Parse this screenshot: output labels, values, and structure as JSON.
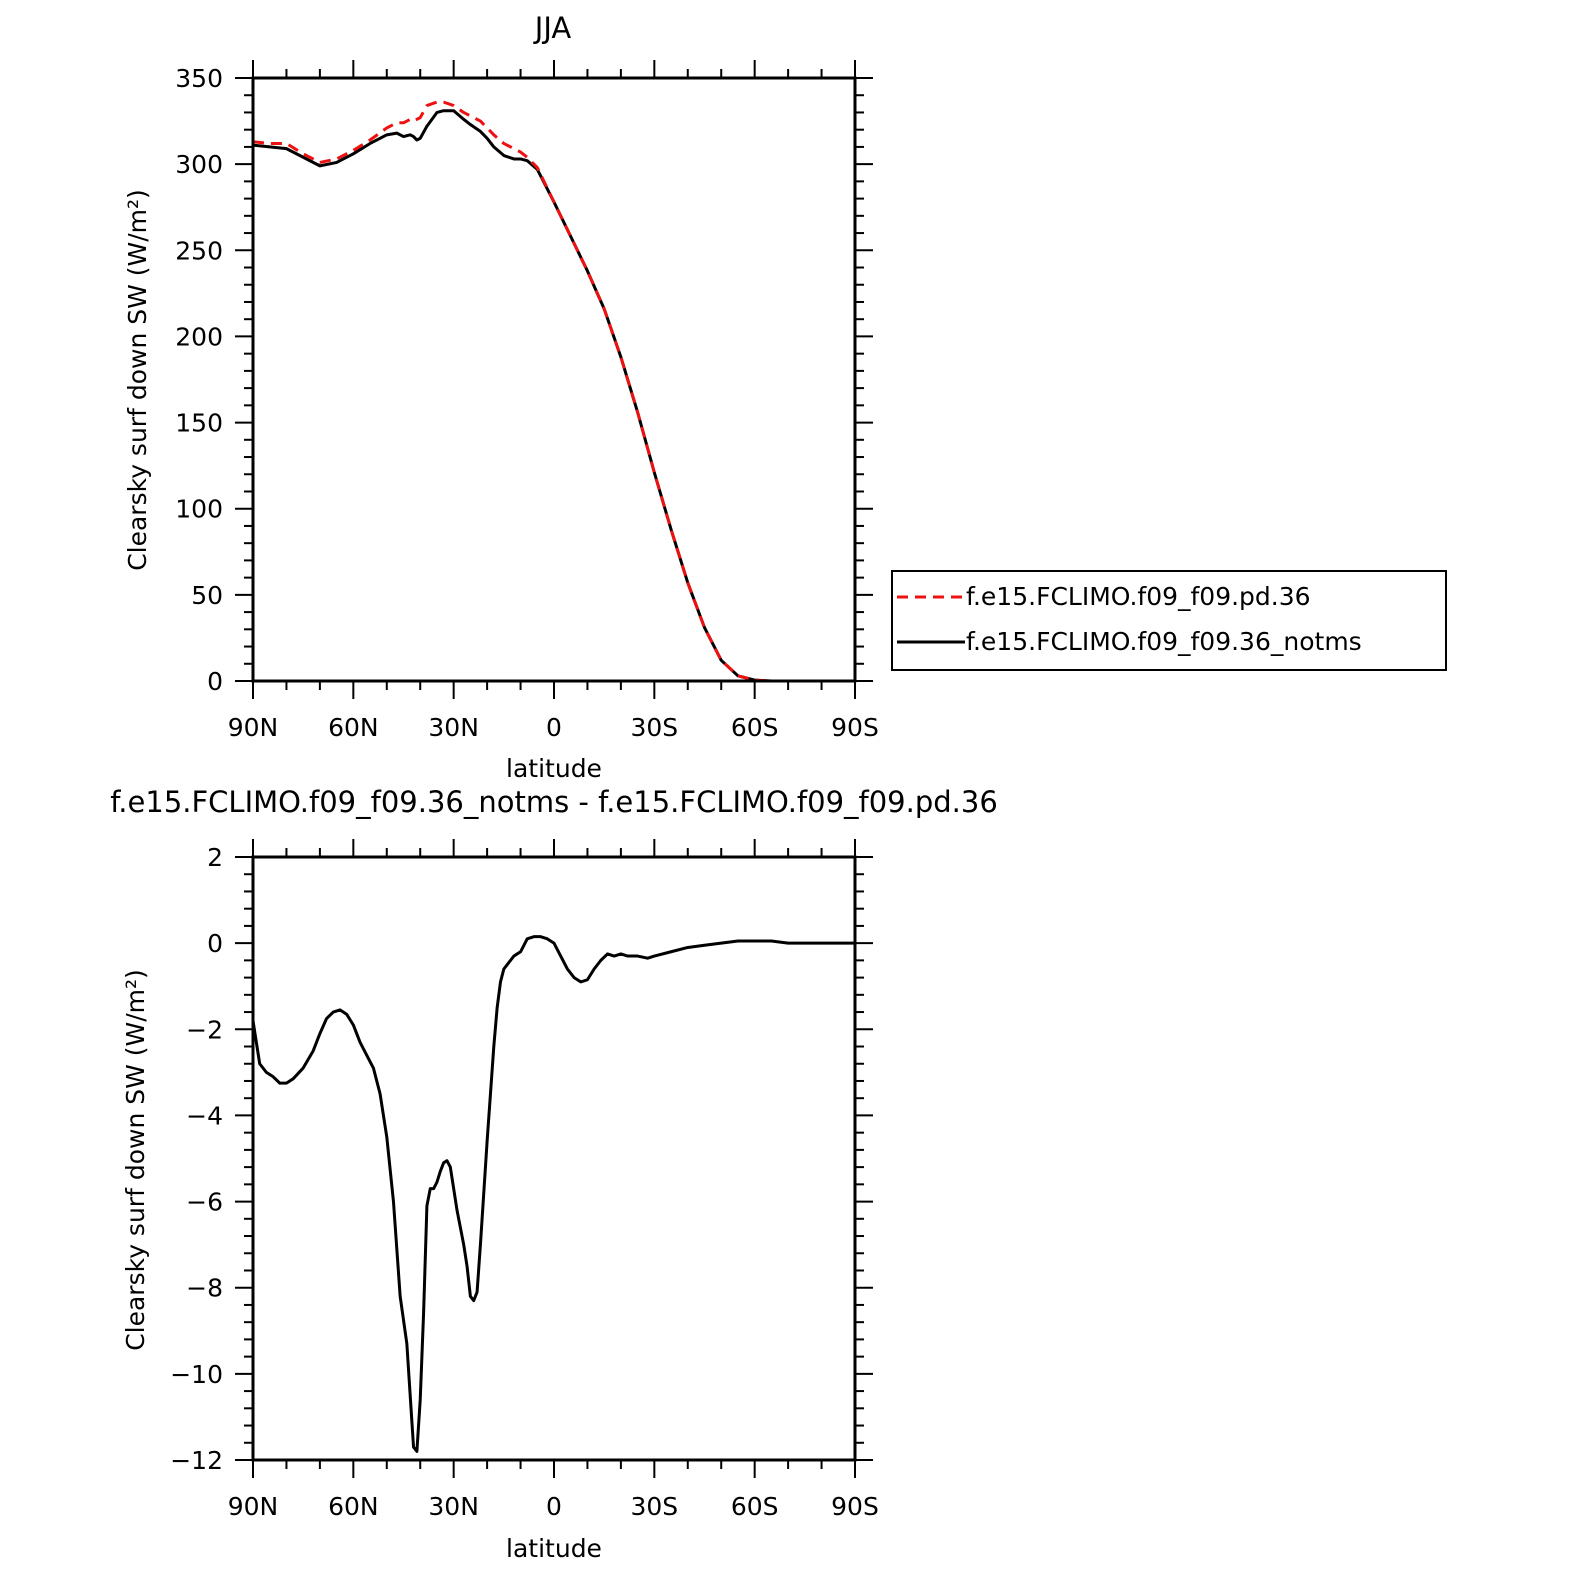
{
  "colors": {
    "ctrl": "#ee1111",
    "notms": "#000000",
    "diff": "#000000",
    "frame": "#000000"
  },
  "chart_data": [
    {
      "type": "line",
      "title": "JJA",
      "xlabel": "latitude",
      "ylabel": "Clearsky surf down SW (W/m²)",
      "xlim": [
        90,
        -90
      ],
      "ylim": [
        0,
        350
      ],
      "xticks": [
        {
          "value": 90,
          "label": "90N"
        },
        {
          "value": 60,
          "label": "60N"
        },
        {
          "value": 30,
          "label": "30N"
        },
        {
          "value": 0,
          "label": "0"
        },
        {
          "value": -30,
          "label": "30S"
        },
        {
          "value": -60,
          "label": "60S"
        },
        {
          "value": -90,
          "label": "90S"
        }
      ],
      "yticks": [
        {
          "value": 350,
          "label": "350"
        },
        {
          "value": 300,
          "label": "300"
        },
        {
          "value": 250,
          "label": "250"
        },
        {
          "value": 200,
          "label": "200"
        },
        {
          "value": 150,
          "label": "150"
        },
        {
          "value": 100,
          "label": "100"
        },
        {
          "value": 50,
          "label": "50"
        },
        {
          "value": 0,
          "label": "0"
        }
      ],
      "legend": {
        "position": "right",
        "entries": [
          "f.e15.FCLIMO.f09_f09.pd.36",
          "f.e15.FCLIMO.f09_f09.36_notms"
        ]
      },
      "series": [
        {
          "name": "f.e15.FCLIMO.f09_f09.pd.36",
          "style": "dashed",
          "color": "#ee1111",
          "x": [
            90,
            85,
            80,
            75,
            70,
            65,
            60,
            55,
            50,
            47,
            45,
            43,
            42,
            41,
            40,
            38,
            35,
            33,
            30,
            27,
            25,
            22,
            20,
            18,
            15,
            12,
            10,
            8,
            5,
            0,
            -5,
            -10,
            -15,
            -20,
            -25,
            -30,
            -35,
            -40,
            -45,
            -50,
            -55,
            -60,
            -65,
            -70,
            -75,
            -80,
            -85,
            -90
          ],
          "y": [
            313,
            312,
            312,
            306,
            301,
            303,
            308,
            314,
            321,
            324,
            324,
            326,
            325,
            326,
            327,
            334,
            336,
            336,
            334,
            330,
            328,
            325,
            321,
            317,
            312,
            309,
            307,
            304,
            298,
            278,
            258,
            238,
            216,
            188,
            156,
            121,
            88,
            57,
            31,
            12,
            3,
            0.5,
            0,
            0,
            0,
            0,
            0,
            0
          ]
        },
        {
          "name": "f.e15.FCLIMO.f09_f09.36_notms",
          "style": "solid",
          "color": "#000000",
          "x": [
            90,
            85,
            80,
            75,
            70,
            65,
            60,
            55,
            50,
            47,
            45,
            43,
            42,
            41,
            40,
            38,
            35,
            33,
            30,
            27,
            25,
            22,
            20,
            18,
            15,
            12,
            10,
            8,
            5,
            0,
            -5,
            -10,
            -15,
            -20,
            -25,
            -30,
            -35,
            -40,
            -45,
            -50,
            -55,
            -60,
            -65,
            -70,
            -75,
            -80,
            -85,
            -90
          ],
          "y": [
            311,
            310,
            309,
            304,
            299,
            301,
            306,
            312,
            317,
            318,
            316,
            317,
            316,
            314,
            315,
            322,
            330,
            331,
            331,
            326,
            323,
            319,
            315,
            310,
            305,
            303,
            303,
            302,
            297,
            278,
            258,
            238,
            216,
            188,
            156,
            121,
            88,
            57,
            31,
            12,
            3,
            0.5,
            0,
            0,
            0,
            0,
            0,
            0
          ]
        }
      ]
    },
    {
      "type": "line",
      "title": "f.e15.FCLIMO.f09_f09.36_notms - f.e15.FCLIMO.f09_f09.pd.36",
      "xlabel": "latitude",
      "ylabel": "Clearsky surf down SW (W/m²)",
      "xlim": [
        90,
        -90
      ],
      "ylim": [
        -12,
        2
      ],
      "xticks": [
        {
          "value": 90,
          "label": "90N"
        },
        {
          "value": 60,
          "label": "60N"
        },
        {
          "value": 30,
          "label": "30N"
        },
        {
          "value": 0,
          "label": "0"
        },
        {
          "value": -30,
          "label": "30S"
        },
        {
          "value": -60,
          "label": "60S"
        },
        {
          "value": -90,
          "label": "90S"
        }
      ],
      "yticks": [
        {
          "value": 2,
          "label": "2"
        },
        {
          "value": 0,
          "label": "0"
        },
        {
          "value": -2,
          "label": "−2"
        },
        {
          "value": -4,
          "label": "−4"
        },
        {
          "value": -6,
          "label": "−6"
        },
        {
          "value": -8,
          "label": "−8"
        },
        {
          "value": -10,
          "label": "−10"
        },
        {
          "value": -12,
          "label": "−12"
        }
      ],
      "series": [
        {
          "style": "solid",
          "color": "#000000",
          "x": [
            90,
            89,
            88,
            86,
            84,
            82,
            80,
            78,
            75,
            72,
            70,
            68,
            66,
            64,
            62,
            60,
            58,
            56,
            54,
            52,
            50,
            48,
            46,
            44,
            42,
            41,
            40,
            39,
            38,
            37,
            36,
            35,
            34,
            33,
            32,
            31,
            30,
            29,
            28,
            27,
            26,
            25,
            24,
            23,
            22,
            21,
            20,
            19,
            18,
            17,
            16,
            15,
            14,
            13,
            12,
            10,
            8,
            6,
            4,
            2,
            0,
            -2,
            -4,
            -6,
            -8,
            -10,
            -12,
            -14,
            -16,
            -18,
            -20,
            -22,
            -25,
            -28,
            -30,
            -35,
            -40,
            -45,
            -50,
            -55,
            -60,
            -65,
            -70,
            -75,
            -80,
            -85,
            -90
          ],
          "y": [
            -1.8,
            -2.3,
            -2.8,
            -3.0,
            -3.1,
            -3.25,
            -3.25,
            -3.15,
            -2.9,
            -2.5,
            -2.1,
            -1.75,
            -1.6,
            -1.55,
            -1.65,
            -1.9,
            -2.3,
            -2.6,
            -2.9,
            -3.5,
            -4.5,
            -6.0,
            -8.2,
            -9.3,
            -11.7,
            -11.8,
            -10.6,
            -8.6,
            -6.1,
            -5.7,
            -5.7,
            -5.55,
            -5.3,
            -5.1,
            -5.05,
            -5.2,
            -5.7,
            -6.2,
            -6.6,
            -7.0,
            -7.5,
            -8.2,
            -8.3,
            -8.1,
            -7.0,
            -5.8,
            -4.6,
            -3.5,
            -2.4,
            -1.5,
            -0.9,
            -0.6,
            -0.5,
            -0.4,
            -0.3,
            -0.2,
            0.1,
            0.15,
            0.15,
            0.1,
            0.0,
            -0.3,
            -0.6,
            -0.8,
            -0.9,
            -0.85,
            -0.6,
            -0.4,
            -0.25,
            -0.3,
            -0.25,
            -0.3,
            -0.3,
            -0.35,
            -0.3,
            -0.2,
            -0.1,
            -0.05,
            0.0,
            0.05,
            0.05,
            0.05,
            0.0,
            0.0,
            0.0,
            0.0,
            0.0
          ]
        }
      ]
    }
  ]
}
